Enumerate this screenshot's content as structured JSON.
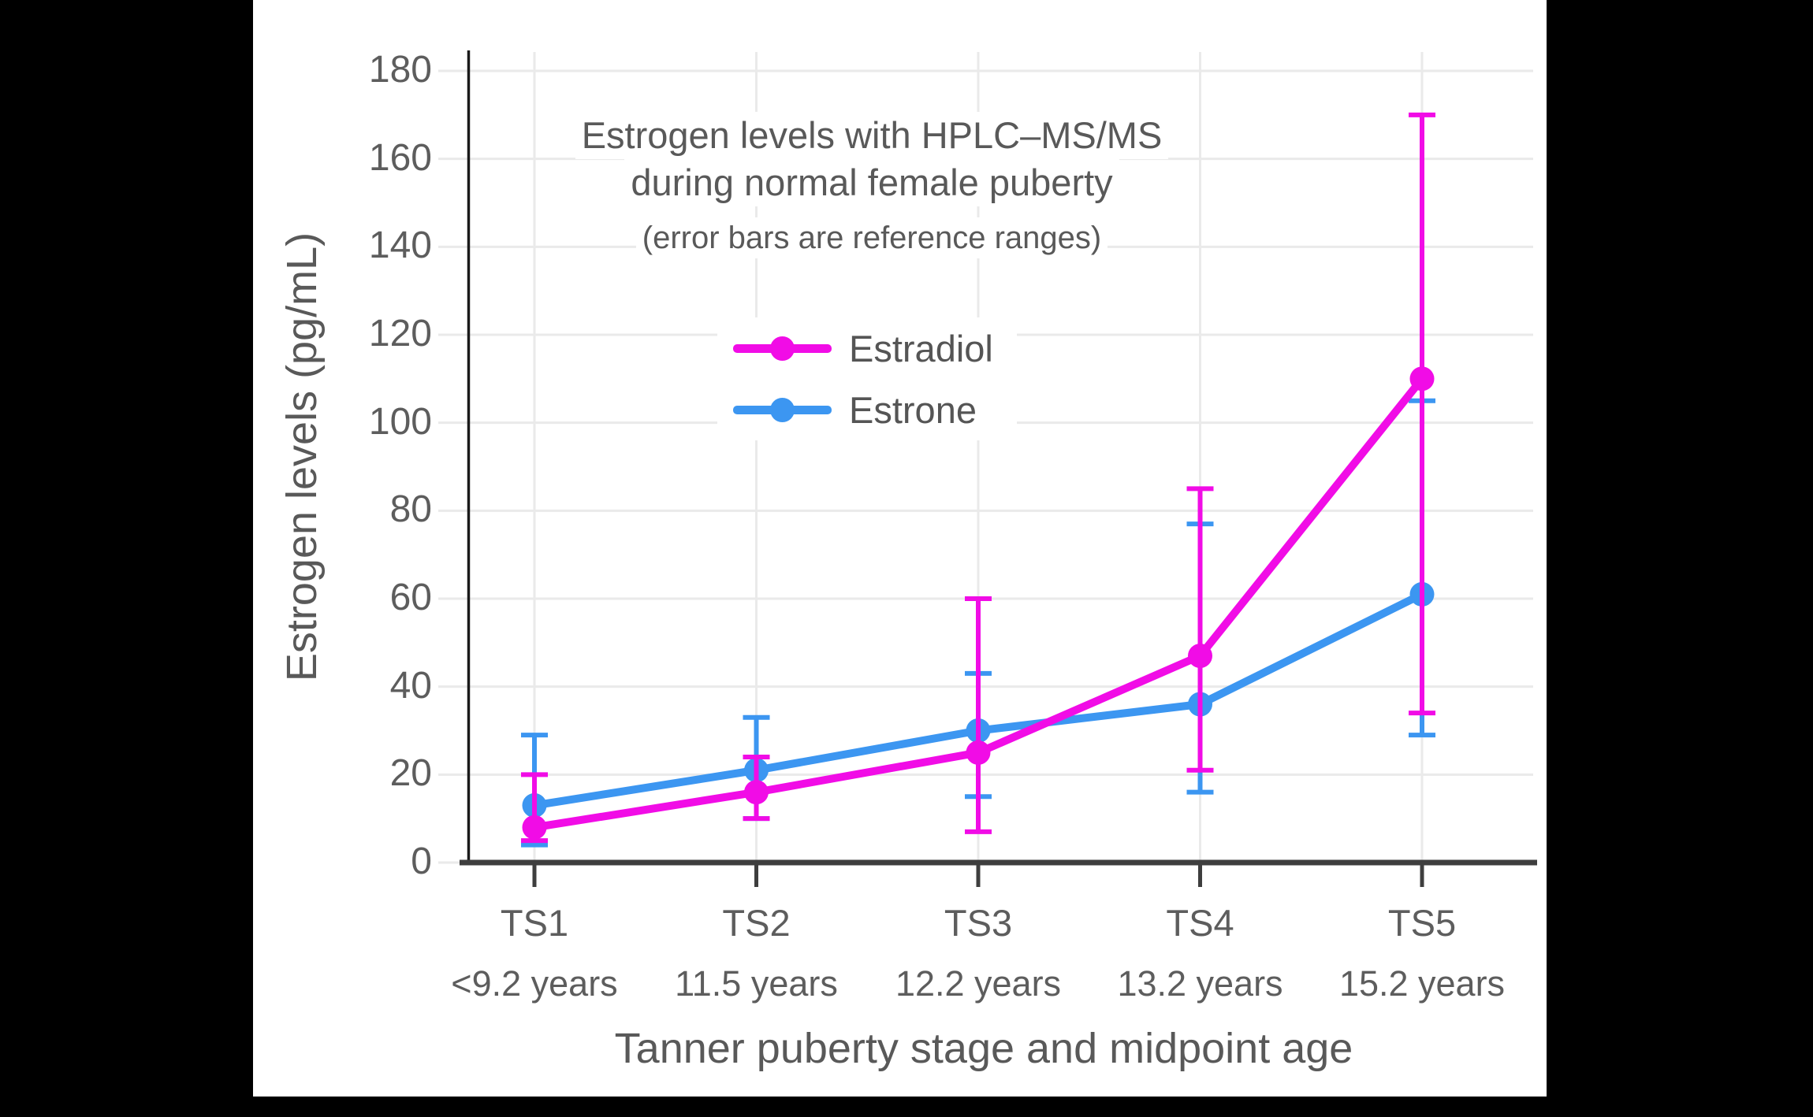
{
  "page": {
    "background_color": "#000000",
    "panel_color": "#ffffff"
  },
  "chart_data": {
    "type": "line",
    "title_line1": "Estrogen levels with HPLC–MS/MS",
    "title_line2": "during normal female puberty",
    "subtitle": "(error bars are reference ranges)",
    "xlabel": "Tanner puberty stage and midpoint age",
    "ylabel": "Estrogen levels (pg/mL)",
    "x_categories": [
      "TS1",
      "TS2",
      "TS3",
      "TS4",
      "TS5"
    ],
    "x_category_ages": [
      "<9.2 years",
      "11.5 years",
      "12.2 years",
      "13.2 years",
      "15.2 years"
    ],
    "y_ticks": [
      0,
      20,
      40,
      60,
      80,
      100,
      120,
      140,
      160,
      180
    ],
    "ylim": [
      0,
      184
    ],
    "grid": true,
    "legend_position": "inside-upper-center",
    "colors": {
      "estradiol": "#F10CE6",
      "estrone": "#3C96F1",
      "gridline": "#EAEAEA",
      "x_axis": "#3E3E3E",
      "y_axis": "#1A1A1A",
      "text": "#595959"
    },
    "series": [
      {
        "name": "Estrone",
        "color": "#3C96F1",
        "values": [
          13,
          21,
          30,
          36,
          61
        ],
        "err_low": [
          4,
          10,
          15,
          16,
          29
        ],
        "err_high": [
          29,
          33,
          43,
          77,
          105
        ]
      },
      {
        "name": "Estradiol",
        "color": "#F10CE6",
        "values": [
          8,
          16,
          25,
          47,
          110
        ],
        "err_low": [
          5,
          10,
          7,
          21,
          34
        ],
        "err_high": [
          20,
          24,
          60,
          85,
          170
        ]
      }
    ]
  },
  "legend": {
    "items": [
      {
        "label": "Estradiol",
        "color": "#F10CE6"
      },
      {
        "label": "Estrone",
        "color": "#3C96F1"
      }
    ]
  }
}
